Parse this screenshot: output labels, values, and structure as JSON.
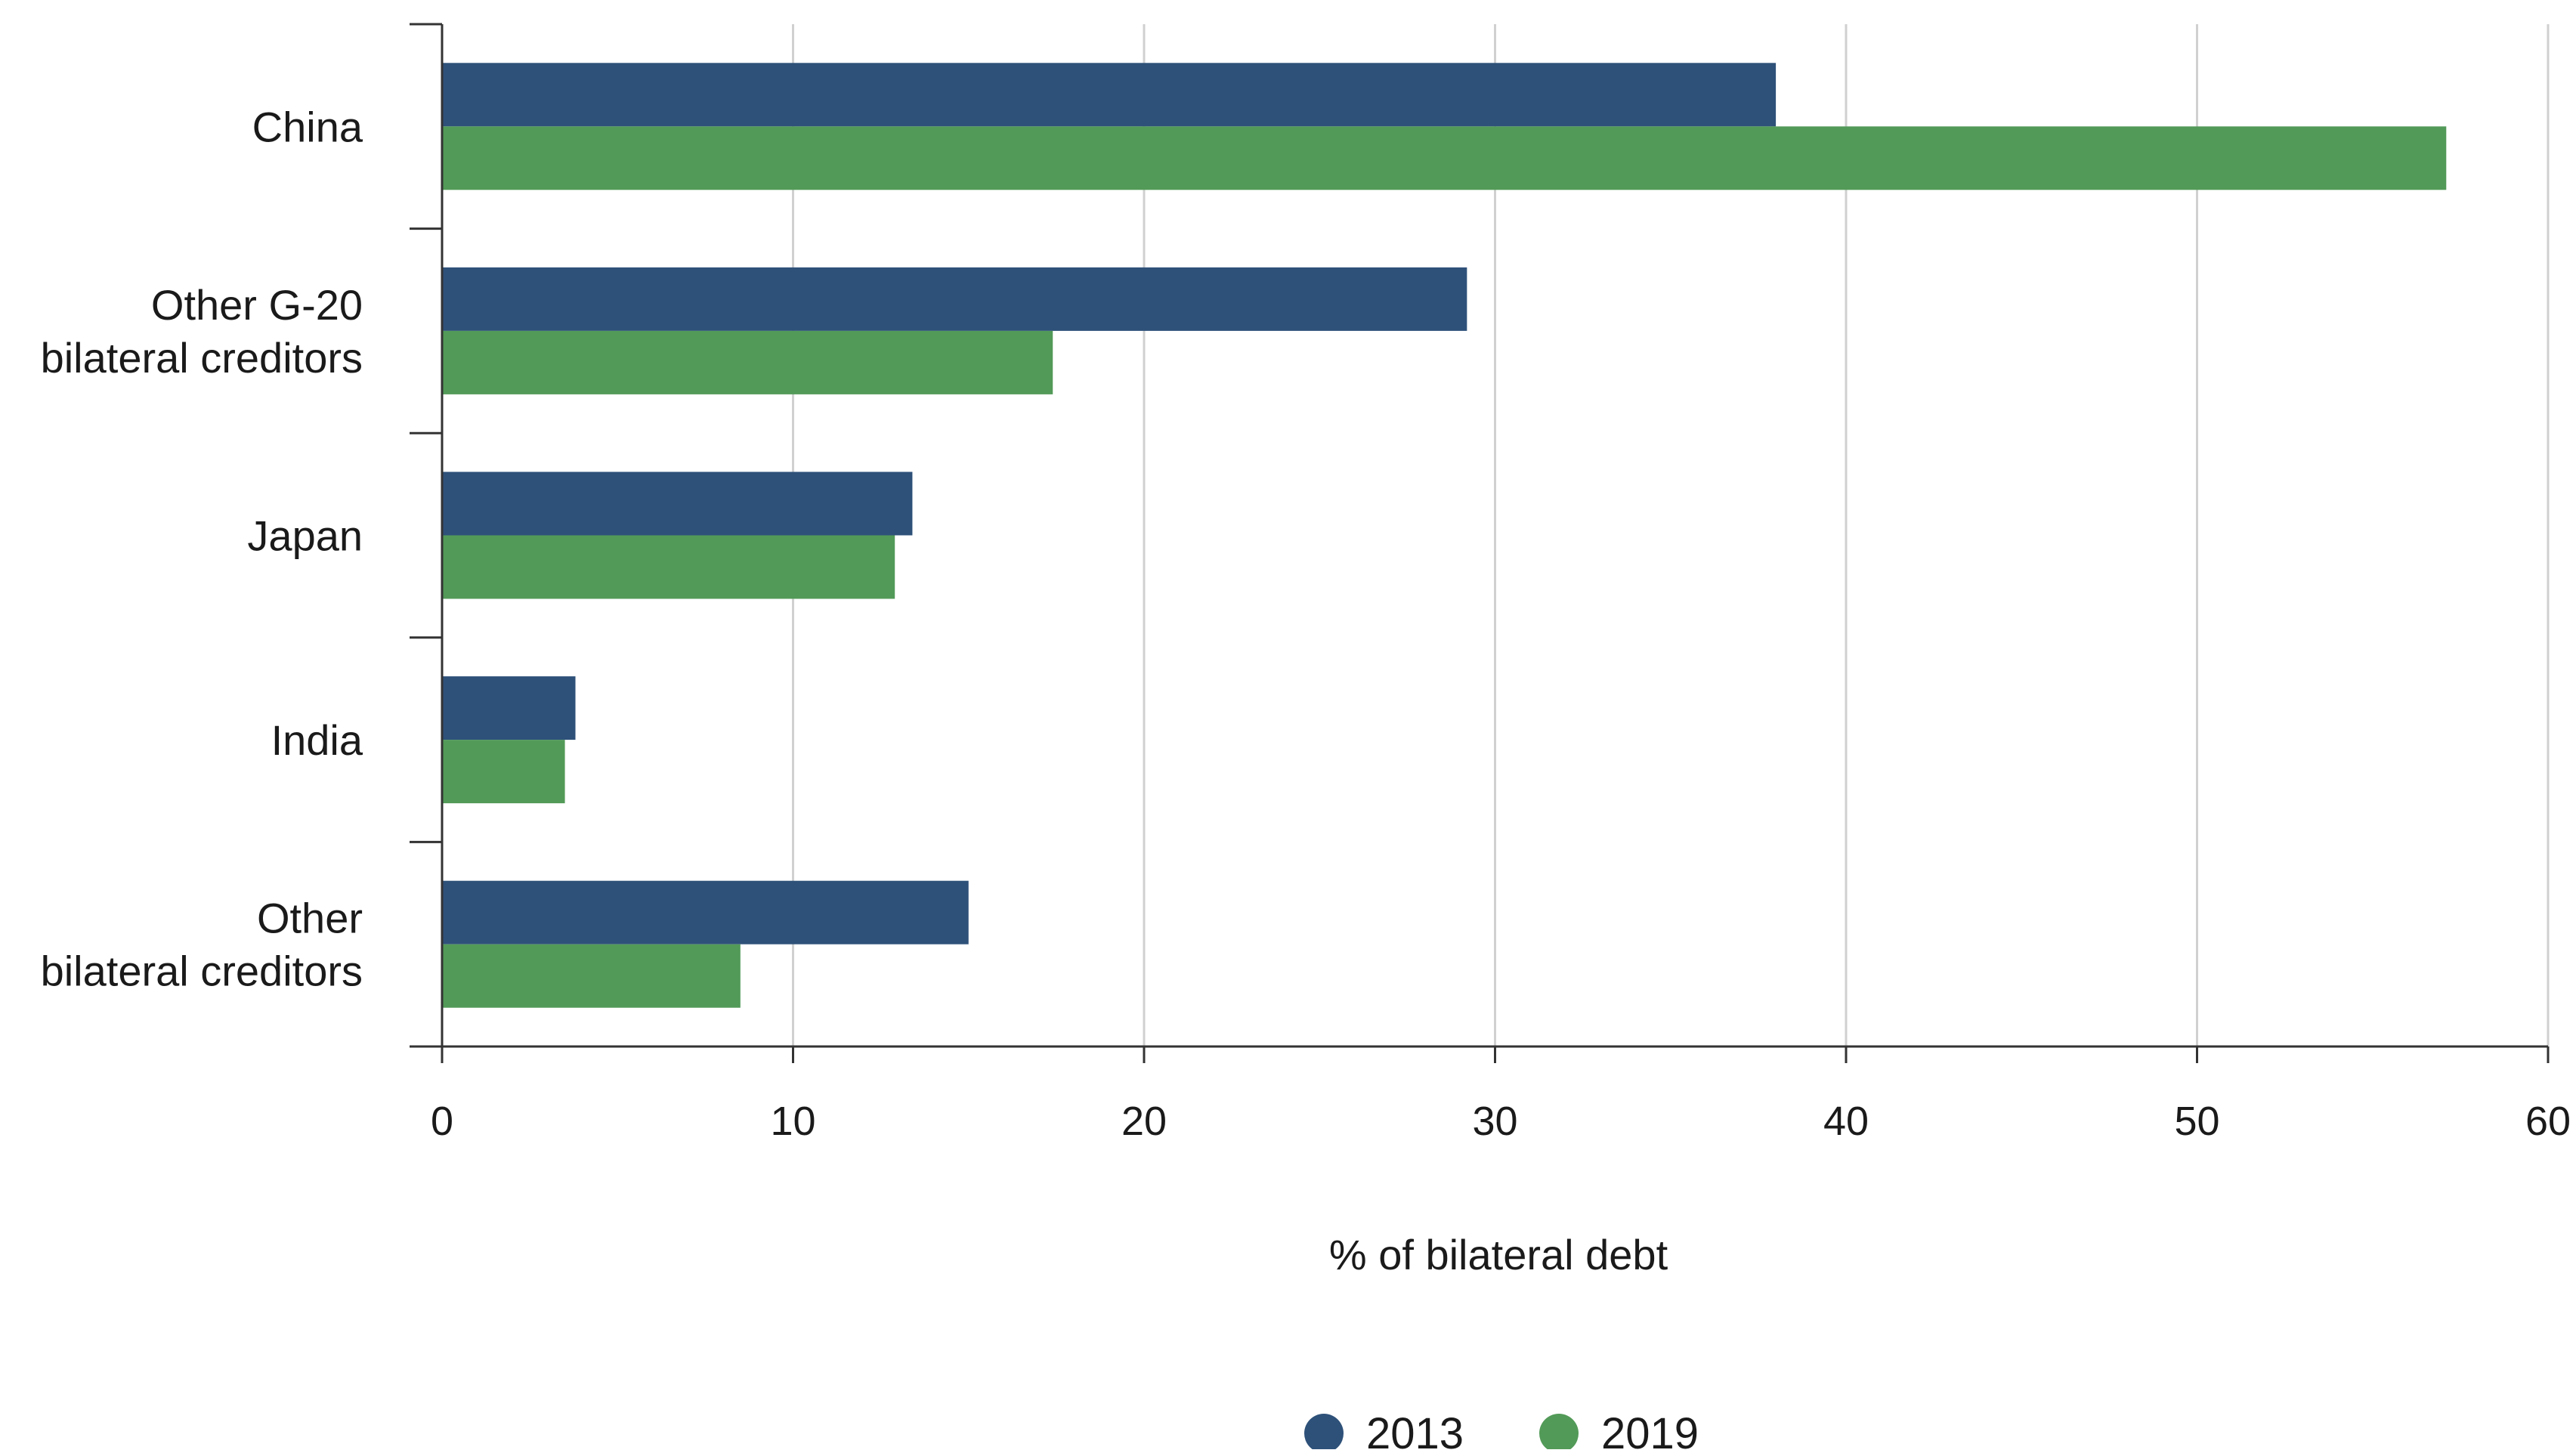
{
  "chart_data": {
    "type": "bar",
    "orientation": "horizontal",
    "categories": [
      [
        "China"
      ],
      [
        "Other G-20",
        "bilateral creditors"
      ],
      [
        "Japan"
      ],
      [
        "India"
      ],
      [
        "Other",
        "bilateral creditors"
      ]
    ],
    "series": [
      {
        "name": "2013",
        "color": "#2e5179",
        "values": [
          38.0,
          29.2,
          13.4,
          3.8,
          15.0
        ]
      },
      {
        "name": "2019",
        "color": "#529a58",
        "values": [
          57.1,
          17.4,
          12.9,
          3.5,
          8.5
        ]
      }
    ],
    "xlabel": "% of bilateral debt",
    "xlim": [
      0,
      60
    ],
    "xticks": [
      0,
      10,
      20,
      30,
      40,
      50,
      60
    ],
    "grid": "vertical",
    "legend_position": "bottom-center"
  }
}
